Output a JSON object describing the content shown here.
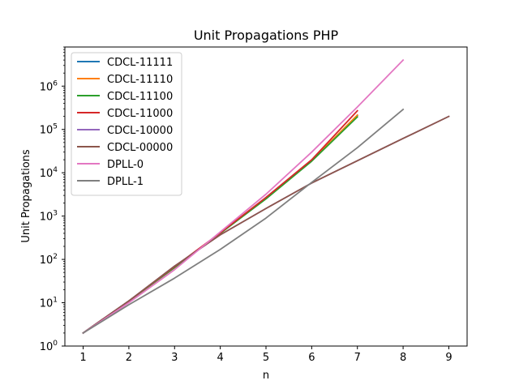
{
  "chart_data": {
    "type": "line",
    "title": "Unit Propagations PHP",
    "xlabel": "n",
    "ylabel": "Unit Propagations",
    "yscale": "log",
    "xlim": [
      0.6,
      9.4
    ],
    "ylim": [
      1,
      8000000
    ],
    "grid": false,
    "legend_position": "top-left",
    "x_ticks": [
      1,
      2,
      3,
      4,
      5,
      6,
      7,
      8,
      9
    ],
    "y_ticks": [
      {
        "value": 1,
        "base": "10",
        "exp": "0"
      },
      {
        "value": 10,
        "base": "10",
        "exp": "1"
      },
      {
        "value": 100,
        "base": "10",
        "exp": "2"
      },
      {
        "value": 1000,
        "base": "10",
        "exp": "3"
      },
      {
        "value": 10000,
        "base": "10",
        "exp": "4"
      },
      {
        "value": 100000,
        "base": "10",
        "exp": "5"
      },
      {
        "value": 1000000,
        "base": "10",
        "exp": "6"
      }
    ],
    "series": [
      {
        "name": "CDCL-11111",
        "color": "#1f77b4",
        "x": [
          1,
          2,
          3,
          4,
          5,
          6,
          7
        ],
        "y": [
          2,
          11,
          65,
          400,
          2600,
          19000,
          210000
        ]
      },
      {
        "name": "CDCL-11110",
        "color": "#ff7f0e",
        "x": [
          1,
          2,
          3,
          4,
          5,
          6,
          7
        ],
        "y": [
          2,
          11,
          65,
          400,
          2600,
          19000,
          215000
        ]
      },
      {
        "name": "CDCL-11100",
        "color": "#2ca02c",
        "x": [
          1,
          2,
          3,
          4,
          5,
          6,
          7
        ],
        "y": [
          2,
          11,
          65,
          400,
          2500,
          18500,
          195000
        ]
      },
      {
        "name": "CDCL-11000",
        "color": "#d62728",
        "x": [
          1,
          2,
          3,
          4,
          5,
          6,
          7
        ],
        "y": [
          2,
          11,
          68,
          410,
          2700,
          20000,
          270000
        ]
      },
      {
        "name": "CDCL-10000",
        "color": "#9467bd",
        "x": [
          1,
          2,
          3,
          4,
          5,
          6,
          7,
          8,
          9
        ],
        "y": [
          2,
          11,
          70,
          370,
          1500,
          5800,
          19000,
          62000,
          200000
        ]
      },
      {
        "name": "CDCL-00000",
        "color": "#8c564b",
        "x": [
          1,
          2,
          3,
          4,
          5,
          6,
          7,
          8,
          9
        ],
        "y": [
          2,
          11,
          70,
          370,
          1500,
          5800,
          19000,
          62000,
          200000
        ]
      },
      {
        "name": "DPLL-0",
        "color": "#e377c2",
        "x": [
          1,
          2,
          3,
          4,
          5,
          6,
          7,
          8
        ],
        "y": [
          2,
          10,
          58,
          430,
          3200,
          30000,
          330000,
          4000000
        ]
      },
      {
        "name": "DPLL-1",
        "color": "#7f7f7f",
        "x": [
          1,
          2,
          3,
          4,
          5,
          6,
          7,
          8
        ],
        "y": [
          2,
          9,
          37,
          170,
          900,
          6000,
          38000,
          290000
        ]
      }
    ]
  }
}
